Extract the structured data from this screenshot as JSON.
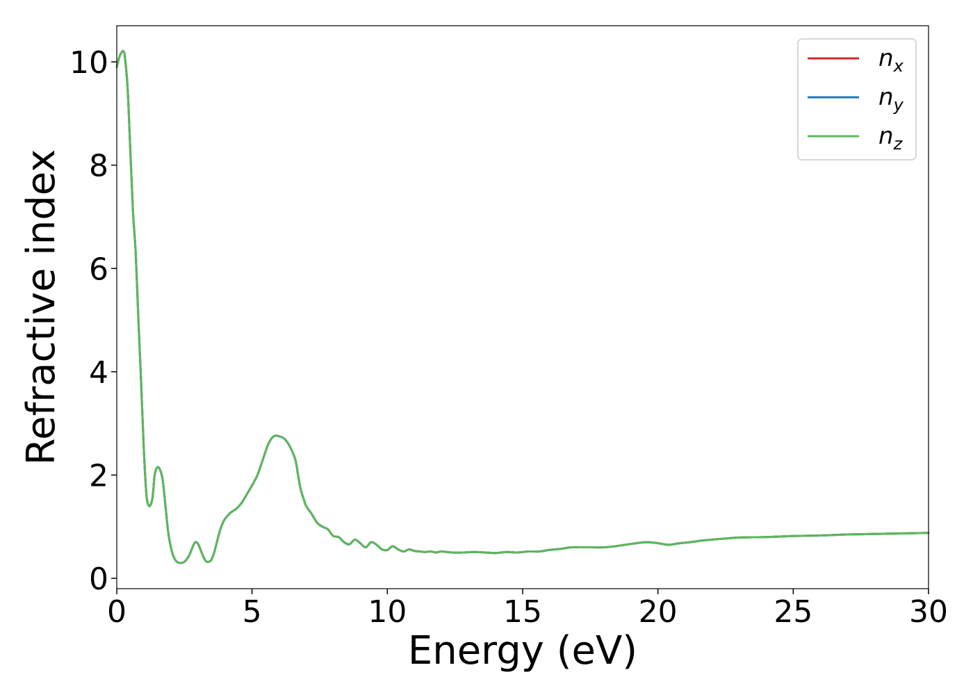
{
  "chart_data": {
    "type": "line",
    "xlabel": "Energy (eV)",
    "ylabel": "Refractive index",
    "xlim": [
      0,
      30
    ],
    "ylim": [
      -0.2,
      10.7
    ],
    "xticks": [
      0,
      5,
      10,
      15,
      20,
      25,
      30
    ],
    "yticks": [
      0,
      2,
      4,
      6,
      8,
      10
    ],
    "grid": false,
    "legend_position": "top-right",
    "series": [
      {
        "name": "n_x",
        "label_base": "n",
        "label_sub": "x",
        "color": "#d62728",
        "x": [
          0.0,
          0.1,
          0.2,
          0.25,
          0.3,
          0.4,
          0.5,
          0.6,
          0.7,
          0.8,
          0.9,
          1.0,
          1.1,
          1.2,
          1.3,
          1.35,
          1.4,
          1.5,
          1.6,
          1.7,
          1.8,
          1.9,
          2.0,
          2.1,
          2.2,
          2.3,
          2.4,
          2.5,
          2.6,
          2.7,
          2.8,
          2.9,
          3.0,
          3.1,
          3.2,
          3.3,
          3.4,
          3.5,
          3.6,
          3.7,
          3.8,
          3.9,
          4.0,
          4.2,
          4.4,
          4.6,
          4.8,
          5.0,
          5.2,
          5.4,
          5.6,
          5.8,
          6.0,
          6.2,
          6.4,
          6.6,
          6.7,
          6.8,
          6.9,
          7.0,
          7.2,
          7.4,
          7.6,
          7.8,
          8.0,
          8.2,
          8.4,
          8.6,
          8.8,
          9.0,
          9.2,
          9.4,
          9.6,
          9.8,
          10.0,
          10.2,
          10.4,
          10.6,
          10.8,
          11.0,
          11.2,
          11.4,
          11.6,
          11.8,
          12.0,
          12.4,
          12.8,
          13.2,
          13.6,
          14.0,
          14.4,
          14.8,
          15.2,
          15.6,
          16.0,
          16.4,
          16.8,
          17.2,
          17.6,
          18.0,
          18.4,
          18.8,
          19.2,
          19.6,
          20.0,
          20.4,
          20.8,
          21.2,
          21.6,
          22.0,
          22.5,
          23.0,
          24.0,
          25.0,
          26.0,
          27.0,
          28.0,
          29.0,
          30.0
        ],
        "y": [
          9.9,
          10.1,
          10.2,
          10.2,
          10.1,
          9.5,
          8.3,
          7.1,
          6.3,
          5.0,
          3.8,
          2.5,
          1.6,
          1.4,
          1.5,
          1.7,
          2.0,
          2.15,
          2.1,
          1.9,
          1.4,
          0.9,
          0.6,
          0.42,
          0.33,
          0.3,
          0.3,
          0.32,
          0.38,
          0.47,
          0.6,
          0.7,
          0.67,
          0.55,
          0.42,
          0.33,
          0.32,
          0.36,
          0.5,
          0.7,
          0.9,
          1.05,
          1.15,
          1.27,
          1.34,
          1.45,
          1.62,
          1.8,
          2.0,
          2.3,
          2.6,
          2.75,
          2.75,
          2.7,
          2.55,
          2.3,
          2.0,
          1.72,
          1.55,
          1.4,
          1.25,
          1.08,
          1.0,
          0.95,
          0.82,
          0.8,
          0.7,
          0.66,
          0.75,
          0.68,
          0.6,
          0.7,
          0.65,
          0.56,
          0.55,
          0.62,
          0.56,
          0.52,
          0.56,
          0.53,
          0.52,
          0.51,
          0.52,
          0.5,
          0.52,
          0.5,
          0.5,
          0.51,
          0.5,
          0.49,
          0.51,
          0.5,
          0.52,
          0.52,
          0.55,
          0.57,
          0.6,
          0.6,
          0.6,
          0.6,
          0.62,
          0.65,
          0.68,
          0.7,
          0.68,
          0.65,
          0.68,
          0.7,
          0.73,
          0.75,
          0.77,
          0.79,
          0.8,
          0.82,
          0.83,
          0.85,
          0.86,
          0.87,
          0.88
        ]
      },
      {
        "name": "n_y",
        "label_base": "n",
        "label_sub": "y",
        "color": "#1f77b4",
        "x": [
          0.0,
          0.1,
          0.2,
          0.25,
          0.3,
          0.4,
          0.5,
          0.6,
          0.7,
          0.8,
          0.9,
          1.0,
          1.1,
          1.2,
          1.3,
          1.35,
          1.4,
          1.5,
          1.6,
          1.7,
          1.8,
          1.9,
          2.0,
          2.1,
          2.2,
          2.3,
          2.4,
          2.5,
          2.6,
          2.7,
          2.8,
          2.9,
          3.0,
          3.1,
          3.2,
          3.3,
          3.4,
          3.5,
          3.6,
          3.7,
          3.8,
          3.9,
          4.0,
          4.2,
          4.4,
          4.6,
          4.8,
          5.0,
          5.2,
          5.4,
          5.6,
          5.8,
          6.0,
          6.2,
          6.4,
          6.6,
          6.7,
          6.8,
          6.9,
          7.0,
          7.2,
          7.4,
          7.6,
          7.8,
          8.0,
          8.2,
          8.4,
          8.6,
          8.8,
          9.0,
          9.2,
          9.4,
          9.6,
          9.8,
          10.0,
          10.2,
          10.4,
          10.6,
          10.8,
          11.0,
          11.2,
          11.4,
          11.6,
          11.8,
          12.0,
          12.4,
          12.8,
          13.2,
          13.6,
          14.0,
          14.4,
          14.8,
          15.2,
          15.6,
          16.0,
          16.4,
          16.8,
          17.2,
          17.6,
          18.0,
          18.4,
          18.8,
          19.2,
          19.6,
          20.0,
          20.4,
          20.8,
          21.2,
          21.6,
          22.0,
          22.5,
          23.0,
          24.0,
          25.0,
          26.0,
          27.0,
          28.0,
          29.0,
          30.0
        ],
        "y": [
          9.9,
          10.1,
          10.2,
          10.2,
          10.1,
          9.5,
          8.3,
          7.1,
          6.3,
          5.0,
          3.8,
          2.5,
          1.6,
          1.4,
          1.5,
          1.7,
          2.0,
          2.15,
          2.1,
          1.9,
          1.4,
          0.9,
          0.6,
          0.42,
          0.33,
          0.3,
          0.3,
          0.32,
          0.38,
          0.47,
          0.6,
          0.7,
          0.67,
          0.55,
          0.42,
          0.33,
          0.32,
          0.36,
          0.5,
          0.7,
          0.9,
          1.05,
          1.15,
          1.27,
          1.34,
          1.45,
          1.62,
          1.8,
          2.0,
          2.3,
          2.6,
          2.75,
          2.75,
          2.7,
          2.55,
          2.3,
          2.0,
          1.72,
          1.55,
          1.4,
          1.25,
          1.08,
          1.0,
          0.95,
          0.82,
          0.8,
          0.7,
          0.66,
          0.75,
          0.68,
          0.6,
          0.7,
          0.65,
          0.56,
          0.55,
          0.62,
          0.56,
          0.52,
          0.56,
          0.53,
          0.52,
          0.51,
          0.52,
          0.5,
          0.52,
          0.5,
          0.5,
          0.51,
          0.5,
          0.49,
          0.51,
          0.5,
          0.52,
          0.52,
          0.55,
          0.57,
          0.6,
          0.6,
          0.6,
          0.6,
          0.62,
          0.65,
          0.68,
          0.7,
          0.68,
          0.65,
          0.68,
          0.7,
          0.73,
          0.75,
          0.77,
          0.79,
          0.8,
          0.82,
          0.83,
          0.85,
          0.86,
          0.87,
          0.88
        ]
      },
      {
        "name": "n_z",
        "label_base": "n",
        "label_sub": "z",
        "color": "#5cb85c",
        "x": [
          0.0,
          0.1,
          0.2,
          0.25,
          0.3,
          0.4,
          0.5,
          0.6,
          0.7,
          0.8,
          0.9,
          1.0,
          1.1,
          1.2,
          1.3,
          1.35,
          1.4,
          1.5,
          1.6,
          1.7,
          1.8,
          1.9,
          2.0,
          2.1,
          2.2,
          2.3,
          2.4,
          2.5,
          2.6,
          2.7,
          2.8,
          2.9,
          3.0,
          3.1,
          3.2,
          3.3,
          3.4,
          3.5,
          3.6,
          3.7,
          3.8,
          3.9,
          4.0,
          4.2,
          4.4,
          4.6,
          4.8,
          5.0,
          5.2,
          5.4,
          5.6,
          5.8,
          6.0,
          6.2,
          6.4,
          6.6,
          6.7,
          6.8,
          6.9,
          7.0,
          7.2,
          7.4,
          7.6,
          7.8,
          8.0,
          8.2,
          8.4,
          8.6,
          8.8,
          9.0,
          9.2,
          9.4,
          9.6,
          9.8,
          10.0,
          10.2,
          10.4,
          10.6,
          10.8,
          11.0,
          11.2,
          11.4,
          11.6,
          11.8,
          12.0,
          12.4,
          12.8,
          13.2,
          13.6,
          14.0,
          14.4,
          14.8,
          15.2,
          15.6,
          16.0,
          16.4,
          16.8,
          17.2,
          17.6,
          18.0,
          18.4,
          18.8,
          19.2,
          19.6,
          20.0,
          20.4,
          20.8,
          21.2,
          21.6,
          22.0,
          22.5,
          23.0,
          24.0,
          25.0,
          26.0,
          27.0,
          28.0,
          29.0,
          30.0
        ],
        "y": [
          9.9,
          10.1,
          10.2,
          10.2,
          10.1,
          9.5,
          8.3,
          7.1,
          6.3,
          5.0,
          3.8,
          2.5,
          1.6,
          1.4,
          1.5,
          1.7,
          2.0,
          2.15,
          2.1,
          1.9,
          1.4,
          0.9,
          0.6,
          0.42,
          0.33,
          0.3,
          0.3,
          0.32,
          0.38,
          0.47,
          0.6,
          0.7,
          0.67,
          0.55,
          0.42,
          0.33,
          0.32,
          0.36,
          0.5,
          0.7,
          0.9,
          1.05,
          1.15,
          1.27,
          1.34,
          1.45,
          1.62,
          1.8,
          2.0,
          2.3,
          2.6,
          2.75,
          2.75,
          2.7,
          2.55,
          2.3,
          2.0,
          1.72,
          1.55,
          1.4,
          1.25,
          1.08,
          1.0,
          0.95,
          0.82,
          0.8,
          0.7,
          0.66,
          0.75,
          0.68,
          0.6,
          0.7,
          0.65,
          0.56,
          0.55,
          0.62,
          0.56,
          0.52,
          0.56,
          0.53,
          0.52,
          0.51,
          0.52,
          0.5,
          0.52,
          0.5,
          0.5,
          0.51,
          0.5,
          0.49,
          0.51,
          0.5,
          0.52,
          0.52,
          0.55,
          0.57,
          0.6,
          0.6,
          0.6,
          0.6,
          0.62,
          0.65,
          0.68,
          0.7,
          0.68,
          0.65,
          0.68,
          0.7,
          0.73,
          0.75,
          0.77,
          0.79,
          0.8,
          0.82,
          0.83,
          0.85,
          0.86,
          0.87,
          0.88
        ]
      }
    ]
  }
}
